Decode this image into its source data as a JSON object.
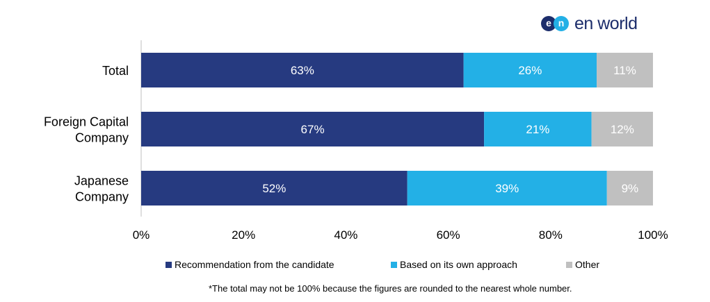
{
  "brand": {
    "mark_left": "e",
    "mark_right": "n",
    "name": "en world"
  },
  "colors": {
    "recommendation": "#263a80",
    "own_approach": "#23b0e6",
    "other": "#c0c0c0"
  },
  "chart_data": {
    "type": "bar",
    "orientation": "horizontal",
    "stacked": true,
    "categories": [
      "Total",
      "Foreign Capital Company",
      "Japanese Company"
    ],
    "category_lines": [
      [
        "Total"
      ],
      [
        "Foreign Capital",
        "Company"
      ],
      [
        "Japanese",
        "Company"
      ]
    ],
    "series": [
      {
        "name": "Recommendation from the candidate",
        "values": [
          63,
          67,
          52
        ],
        "labels": [
          "63%",
          "67%",
          "52%"
        ]
      },
      {
        "name": "Based on its own approach",
        "values": [
          26,
          21,
          39
        ],
        "labels": [
          "26%",
          "21%",
          "39%"
        ]
      },
      {
        "name": "Other",
        "values": [
          11,
          12,
          9
        ],
        "labels": [
          "11%",
          "12%",
          "9%"
        ]
      }
    ],
    "xlim": [
      0,
      100
    ],
    "xticks": [
      0,
      20,
      40,
      60,
      80,
      100
    ],
    "xtick_labels": [
      "0%",
      "20%",
      "40%",
      "60%",
      "80%",
      "100%"
    ],
    "legend_position": "bottom",
    "grid": false
  },
  "legend": [
    {
      "label": "Recommendation from the candidate"
    },
    {
      "label": "Based on its own approach"
    },
    {
      "label": "Other"
    }
  ],
  "footnote": "*The total may not be 100% because the figures are rounded to the nearest whole number."
}
